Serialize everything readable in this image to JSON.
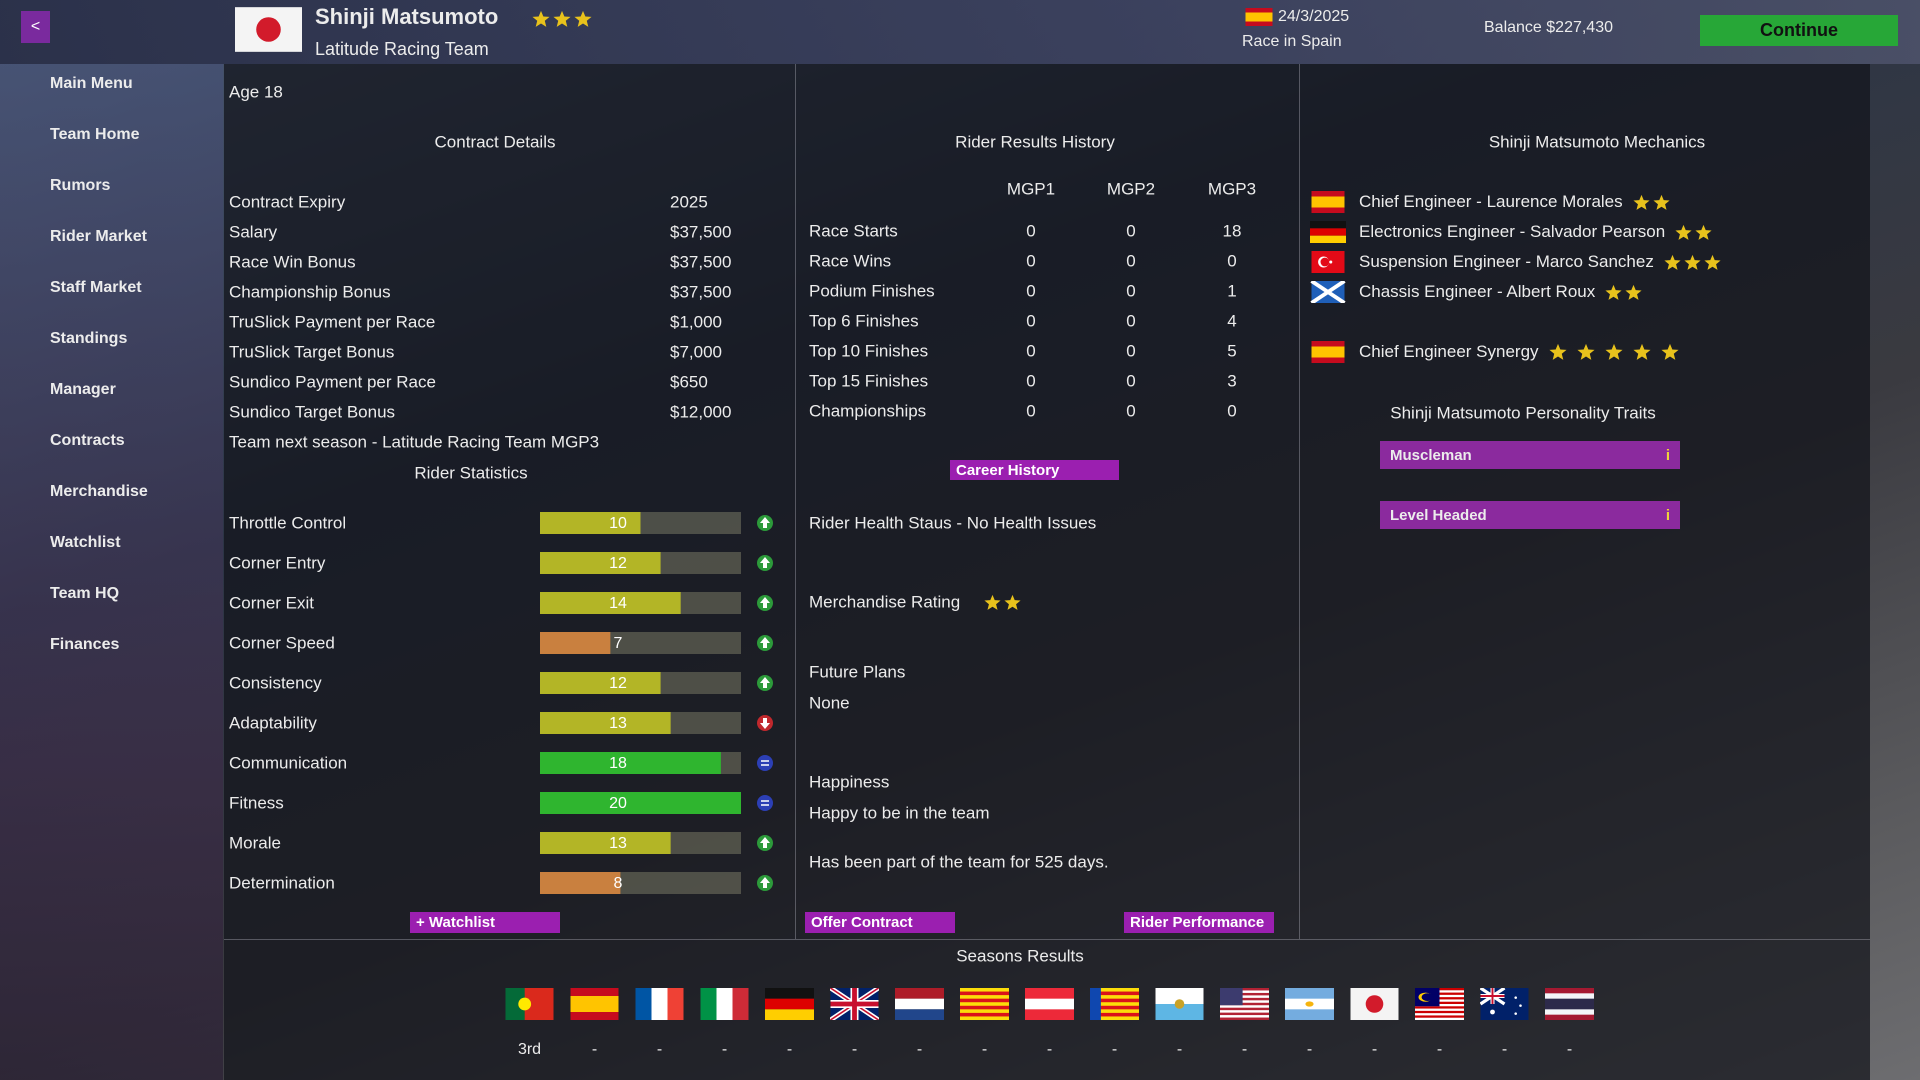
{
  "header": {
    "back": "<",
    "rider_name": "Shinji Matsumoto",
    "rider_stars": 3,
    "team": "Latitude Racing Team",
    "date": "24/3/2025",
    "next_race": "Race in Spain",
    "balance": "Balance $227,430",
    "continue": "Continue"
  },
  "nav": [
    "Main Menu",
    "Team Home",
    "Rumors",
    "Rider Market",
    "Staff Market",
    "Standings",
    "Manager",
    "Contracts",
    "Merchandise",
    "Watchlist",
    "Team HQ",
    "Finances"
  ],
  "age": "Age 18",
  "contract": {
    "title": "Contract Details",
    "rows": [
      [
        "Contract Expiry",
        "2025"
      ],
      [
        "Salary",
        "$37,500"
      ],
      [
        "Race Win Bonus",
        "$37,500"
      ],
      [
        "Championship Bonus",
        "$37,500"
      ],
      [
        "TruSlick Payment per Race",
        "$1,000"
      ],
      [
        "TruSlick Target Bonus",
        "$7,000"
      ],
      [
        "Sundico Payment per Race",
        "$650"
      ],
      [
        "Sundico Target Bonus",
        "$12,000"
      ]
    ],
    "team_next_season": "Team next season - Latitude Racing Team MGP3"
  },
  "rider_statistics": {
    "title": "Rider Statistics",
    "stats": [
      {
        "name": "Throttle Control",
        "value": 10,
        "color": "#b3b526",
        "trend": "up"
      },
      {
        "name": "Corner Entry",
        "value": 12,
        "color": "#b3b526",
        "trend": "up"
      },
      {
        "name": "Corner Exit",
        "value": 14,
        "color": "#b3b526",
        "trend": "up"
      },
      {
        "name": "Corner Speed",
        "value": 7,
        "color": "#c9803f",
        "trend": "up"
      },
      {
        "name": "Consistency",
        "value": 12,
        "color": "#b3b526",
        "trend": "up"
      },
      {
        "name": "Adaptability",
        "value": 13,
        "color": "#b3b526",
        "trend": "down"
      },
      {
        "name": "Communication",
        "value": 18,
        "color": "#2fb52f",
        "trend": "equal"
      },
      {
        "name": "Fitness",
        "value": 20,
        "color": "#2fb52f",
        "trend": "equal"
      },
      {
        "name": "Morale",
        "value": 13,
        "color": "#b3b526",
        "trend": "up"
      },
      {
        "name": "Determination",
        "value": 8,
        "color": "#c9803f",
        "trend": "up"
      }
    ]
  },
  "results_history": {
    "title": "Rider Results History",
    "columns": [
      "MGP1",
      "MGP2",
      "MGP3"
    ],
    "rows": [
      {
        "label": "Race Starts",
        "values": [
          0,
          0,
          18
        ]
      },
      {
        "label": "Race Wins",
        "values": [
          0,
          0,
          0
        ]
      },
      {
        "label": "Podium Finishes",
        "values": [
          0,
          0,
          1
        ]
      },
      {
        "label": "Top 6 Finishes",
        "values": [
          0,
          0,
          4
        ]
      },
      {
        "label": "Top 10 Finishes",
        "values": [
          0,
          0,
          5
        ]
      },
      {
        "label": "Top 15 Finishes",
        "values": [
          0,
          0,
          3
        ]
      },
      {
        "label": "Championships",
        "values": [
          0,
          0,
          0
        ]
      }
    ]
  },
  "mechanics": {
    "title": "Shinji Matsumoto Mechanics",
    "staff": [
      {
        "name": "Chief Engineer - Laurence Morales",
        "stars": 2
      },
      {
        "name": "Electronics Engineer - Salvador Pearson",
        "stars": 2
      },
      {
        "name": "Suspension Engineer - Marco Sanchez",
        "stars": 3
      },
      {
        "name": "Chassis Engineer - Albert Roux",
        "stars": 2
      }
    ],
    "synergy": {
      "label": "Chief Engineer Synergy",
      "stars": 5
    }
  },
  "traits": {
    "title": "Shinji Matsumoto Personality Traits",
    "items": [
      {
        "name": "Muscleman",
        "info": "i"
      },
      {
        "name": "Level Headed",
        "info": "i"
      }
    ]
  },
  "buttons": {
    "career_history": "Career History",
    "watchlist": "+ Watchlist",
    "offer_contract": "Offer Contract",
    "rider_performance": "Rider Performance"
  },
  "rider_info": {
    "health": "Rider Health Staus - No Health Issues",
    "merchandise_label": "Merchandise Rating",
    "merchandise_stars": 2,
    "future_plans_label": "Future Plans",
    "future_plans": "None",
    "happiness_label": "Happiness",
    "happiness": "Happy to be in the team",
    "tenure": "Has been part of the team for 525 days."
  },
  "seasons_results": {
    "title": "Seasons Results",
    "results": [
      "3rd",
      "-",
      "-",
      "-",
      "-",
      "-",
      "-",
      "-",
      "-",
      "-",
      "-",
      "-",
      "-",
      "-",
      "-",
      "-",
      "-"
    ]
  }
}
